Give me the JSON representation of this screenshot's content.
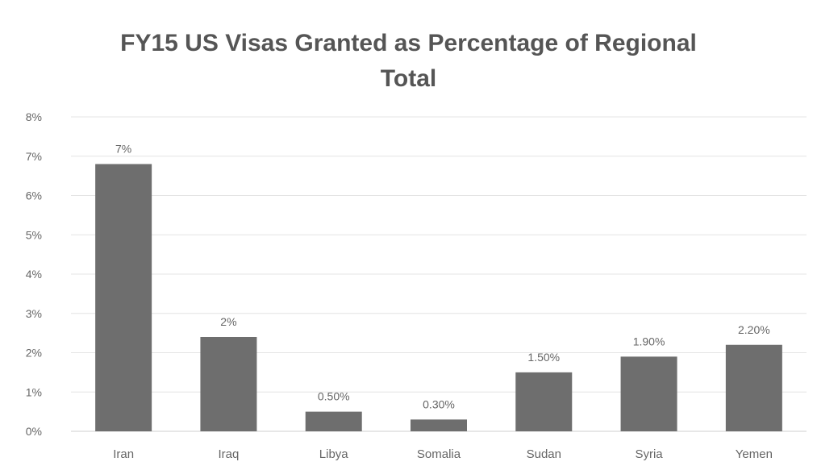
{
  "chart_data": {
    "type": "bar",
    "title_lines": [
      "FY15 US Visas Granted as Percentage of Regional",
      "Total"
    ],
    "categories": [
      "Iran",
      "Iraq",
      "Libya",
      "Somalia",
      "Sudan",
      "Syria",
      "Yemen"
    ],
    "values": [
      6.8,
      2.4,
      0.5,
      0.3,
      1.5,
      1.9,
      2.2
    ],
    "data_labels": [
      "7%",
      "2%",
      "0.50%",
      "0.30%",
      "1.50%",
      "1.90%",
      "2.20%"
    ],
    "y_ticks": [
      "0%",
      "1%",
      "2%",
      "3%",
      "4%",
      "5%",
      "6%",
      "7%",
      "8%"
    ],
    "ylim": [
      0,
      8
    ],
    "unit": "%",
    "grid": true,
    "bar_color": "#6e6e6e",
    "grid_color": "#e4e4e4",
    "text_color": "#666666"
  }
}
